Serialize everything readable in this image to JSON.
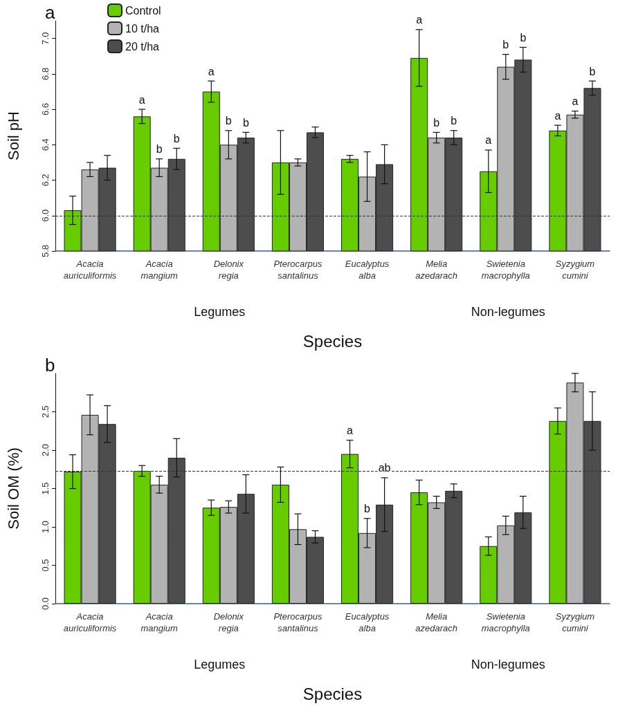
{
  "chart_data": [
    {
      "type": "bar",
      "title": "a",
      "xlabel": "Species",
      "ylabel": "Soil pH",
      "categories": [
        "Acacia auriculiformis",
        "Acacia mangium",
        "Delonix regia",
        "Pterocarpus santalinus",
        "Eucalyptus alba",
        "Melia azedarach",
        "Swietenia macrophylla",
        "Syzygium cumini"
      ],
      "series": [
        {
          "name": "Control",
          "color": "#66cc00",
          "values": [
            6.03,
            6.56,
            6.7,
            6.3,
            6.32,
            6.89,
            6.25,
            6.48
          ],
          "errors": [
            0.08,
            0.04,
            0.06,
            0.18,
            0.02,
            0.16,
            0.12,
            0.03
          ],
          "value_labels": [
            null,
            "a",
            "a",
            null,
            null,
            "a",
            "a",
            "a"
          ]
        },
        {
          "name": "10 t/ha",
          "color": "#b3b3b3",
          "values": [
            6.26,
            6.27,
            6.4,
            6.3,
            6.22,
            6.44,
            6.84,
            6.57
          ],
          "errors": [
            0.04,
            0.05,
            0.08,
            0.02,
            0.14,
            0.03,
            0.07,
            0.02
          ],
          "value_labels": [
            null,
            "b",
            "b",
            null,
            null,
            "b",
            "b",
            "a"
          ]
        },
        {
          "name": "20 t/ha",
          "color": "#4d4d4d",
          "values": [
            6.27,
            6.32,
            6.44,
            6.47,
            6.29,
            6.44,
            6.88,
            6.72
          ],
          "errors": [
            0.07,
            0.06,
            0.03,
            0.03,
            0.11,
            0.04,
            0.07,
            0.04
          ],
          "value_labels": [
            null,
            "b",
            "b",
            null,
            null,
            "b",
            "b",
            "b"
          ]
        }
      ],
      "ylim": [
        5.8,
        7.1
      ],
      "yticks": [
        5.8,
        {
          "value": 6,
          "label": "6.0"
        },
        6.2,
        6.4,
        6.6,
        6.8,
        {
          "value": 7,
          "label": "7.0"
        }
      ],
      "ref_lines": [
        {
          "axis": "y",
          "value": 6.0,
          "line_style": "dashed"
        }
      ],
      "annotations": [
        "Legumes",
        "Non-legumes"
      ],
      "legend": "top left"
    },
    {
      "type": "bar",
      "title": "b",
      "xlabel": "Species",
      "ylabel": "Soil OM (%)",
      "categories": [
        "Acacia auriculiformis",
        "Acacia mangium",
        "Delonix regia",
        "Pterocarpus santalinus",
        "Eucalyptus alba",
        "Melia azedarach",
        "Swietenia macrophylla",
        "Syzygium cumini"
      ],
      "series": [
        {
          "color": "#66cc00",
          "values": [
            1.72,
            1.73,
            1.25,
            1.55,
            1.95,
            1.45,
            0.75,
            2.38
          ],
          "errors": [
            0.22,
            0.07,
            0.1,
            0.23,
            0.18,
            0.16,
            0.12,
            0.17
          ],
          "value_labels": [
            null,
            null,
            null,
            null,
            "a",
            null,
            null,
            null
          ]
        },
        {
          "color": "#b3b3b3",
          "values": [
            2.46,
            1.55,
            1.26,
            0.97,
            0.92,
            1.32,
            1.02,
            2.88
          ],
          "errors": [
            0.26,
            0.11,
            0.08,
            0.2,
            0.19,
            0.08,
            0.12,
            0.12
          ],
          "value_labels": [
            null,
            null,
            null,
            null,
            "b",
            null,
            null,
            null
          ]
        },
        {
          "color": "#4d4d4d",
          "values": [
            2.34,
            1.9,
            1.43,
            0.87,
            1.29,
            1.47,
            1.19,
            2.38
          ],
          "errors": [
            0.24,
            0.25,
            0.25,
            0.08,
            0.35,
            0.09,
            0.21,
            0.38
          ],
          "value_labels": [
            null,
            null,
            null,
            null,
            "ab",
            null,
            null,
            null
          ]
        }
      ],
      "ylim": [
        0,
        3.0
      ],
      "yticks": [
        {
          "value": 0,
          "label": "0.0"
        },
        0.5,
        {
          "value": 1,
          "label": "1.0"
        },
        1.5,
        {
          "value": 2,
          "label": "2.0"
        },
        2.5
      ],
      "ref_lines": [
        {
          "axis": "y",
          "value": 1.73,
          "line_style": "dashed"
        }
      ],
      "annotations": [
        "Legumes",
        "Non-legumes"
      ]
    }
  ]
}
